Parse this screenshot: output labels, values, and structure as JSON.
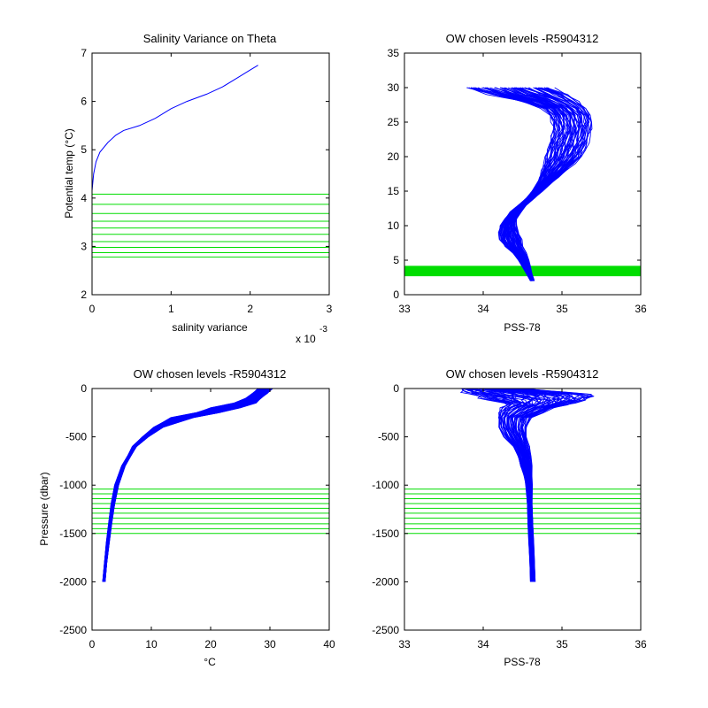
{
  "colors": {
    "profile": "#0000ff",
    "levels": "#00dd00",
    "axis": "#000000",
    "background": "#ffffff"
  },
  "chart_data": [
    {
      "type": "line",
      "title": "Salinity Variance on Theta",
      "xlabel": "salinity variance",
      "ylabel": "Potential temp (°C)",
      "x_multiplier": "x 10",
      "x_multiplier_exp": "-3",
      "xlim": [
        0,
        3
      ],
      "ylim": [
        2,
        7
      ],
      "xticks": [
        "0",
        "1",
        "2",
        "3"
      ],
      "yticks": [
        "2",
        "3",
        "4",
        "5",
        "6",
        "7"
      ],
      "series": [
        {
          "x": [
            0.0,
            0.02,
            0.05,
            0.1,
            0.2,
            0.3,
            0.4,
            0.6,
            0.8,
            1.0,
            1.2,
            1.45,
            1.65,
            1.85,
            2.0,
            2.1
          ],
          "y": [
            4.15,
            4.5,
            4.75,
            4.95,
            5.15,
            5.3,
            5.4,
            5.5,
            5.65,
            5.85,
            6.0,
            6.15,
            6.3,
            6.5,
            6.65,
            6.75
          ]
        }
      ],
      "chosen_levels": [
        4.08,
        3.87,
        3.68,
        3.52,
        3.38,
        3.25,
        3.1,
        2.98,
        2.87,
        2.78
      ]
    },
    {
      "type": "line",
      "title": "OW chosen levels -R5904312",
      "xlabel": "PSS-78",
      "ylabel": "",
      "xlim": [
        33,
        36
      ],
      "ylim": [
        0,
        35
      ],
      "xticks": [
        "33",
        "34",
        "35",
        "36"
      ],
      "yticks": [
        "0",
        "5",
        "10",
        "15",
        "20",
        "25",
        "30",
        "35"
      ],
      "profile_envelope": {
        "theta": [
          2,
          3,
          4,
          5,
          6,
          7,
          8,
          9,
          10,
          11,
          12,
          13,
          14,
          15,
          16,
          17,
          18,
          19,
          20,
          21,
          22,
          23,
          24,
          25,
          26,
          27,
          28,
          29,
          30
        ],
        "salinity_min": [
          34.6,
          34.55,
          34.5,
          34.45,
          34.38,
          34.28,
          34.22,
          34.2,
          34.22,
          34.28,
          34.35,
          34.45,
          34.55,
          34.62,
          34.68,
          34.72,
          34.75,
          34.78,
          34.8,
          34.82,
          34.85,
          34.87,
          34.9,
          34.88,
          34.85,
          34.75,
          34.5,
          34.1,
          33.8
        ],
        "salinity_max": [
          34.65,
          34.62,
          34.6,
          34.58,
          34.55,
          34.5,
          34.48,
          34.45,
          34.42,
          34.42,
          34.48,
          34.55,
          34.65,
          34.75,
          34.85,
          34.95,
          35.05,
          35.15,
          35.25,
          35.3,
          35.33,
          35.35,
          35.37,
          35.38,
          35.35,
          35.3,
          35.2,
          35.05,
          34.85
        ]
      },
      "chosen_levels": [
        4.08,
        3.87,
        3.68,
        3.52,
        3.38,
        3.25,
        3.1,
        2.98,
        2.87,
        2.78
      ]
    },
    {
      "type": "line",
      "title": "OW chosen levels -R5904312",
      "xlabel": "°C",
      "ylabel": "Pressure (dbar)",
      "xlim": [
        0,
        40
      ],
      "ylim": [
        -2500,
        0
      ],
      "xticks": [
        "0",
        "10",
        "20",
        "30",
        "40"
      ],
      "yticks": [
        "-2500",
        "-2000",
        "-1500",
        "-1000",
        "-500",
        "0"
      ],
      "profile_envelope": {
        "pressure": [
          -2000,
          -1800,
          -1600,
          -1400,
          -1200,
          -1000,
          -800,
          -700,
          -600,
          -500,
          -400,
          -300,
          -250,
          -200,
          -150,
          -100,
          -50,
          0
        ],
        "temp_min": [
          1.8,
          2.1,
          2.4,
          2.8,
          3.2,
          3.8,
          5.0,
          6.0,
          6.8,
          8.5,
          10.5,
          13.5,
          17.5,
          20.0,
          24.0,
          26.0,
          27.0,
          28.0
        ],
        "temp_max": [
          2.2,
          2.5,
          2.9,
          3.3,
          3.8,
          4.5,
          5.6,
          6.5,
          7.5,
          9.5,
          12.0,
          17.0,
          21.5,
          25.0,
          27.5,
          28.5,
          29.5,
          30.5
        ]
      },
      "chosen_levels": [
        -1040,
        -1090,
        -1140,
        -1190,
        -1240,
        -1290,
        -1340,
        -1400,
        -1450,
        -1500
      ]
    },
    {
      "type": "line",
      "title": "OW chosen levels -R5904312",
      "xlabel": "PSS-78",
      "ylabel": "",
      "xlim": [
        33,
        36
      ],
      "ylim": [
        -2500,
        0
      ],
      "xticks": [
        "33",
        "34",
        "35",
        "36"
      ],
      "yticks": [
        "-2500",
        "-2000",
        "-1500",
        "-1000",
        "-500",
        "0"
      ],
      "profile_envelope": {
        "pressure": [
          -2000,
          -1800,
          -1600,
          -1400,
          -1200,
          -1000,
          -900,
          -800,
          -700,
          -600,
          -500,
          -400,
          -300,
          -250,
          -200,
          -170,
          -150,
          -120,
          -100,
          -80,
          -60,
          -40,
          -20,
          0
        ],
        "salinity_min": [
          34.6,
          34.59,
          34.58,
          34.57,
          34.56,
          34.54,
          34.52,
          34.48,
          34.44,
          34.38,
          34.28,
          34.2,
          34.18,
          34.2,
          34.25,
          34.3,
          34.25,
          34.1,
          34.0,
          33.9,
          33.85,
          33.8,
          33.75,
          33.7
        ],
        "salinity_max": [
          34.66,
          34.65,
          34.64,
          34.63,
          34.62,
          34.62,
          34.62,
          34.62,
          34.6,
          34.58,
          34.55,
          34.55,
          34.6,
          34.75,
          34.9,
          35.05,
          35.15,
          35.3,
          35.35,
          35.38,
          35.3,
          35.1,
          34.8,
          34.5
        ]
      },
      "chosen_levels": [
        -1040,
        -1090,
        -1140,
        -1190,
        -1240,
        -1290,
        -1340,
        -1400,
        -1450,
        -1500
      ]
    }
  ]
}
